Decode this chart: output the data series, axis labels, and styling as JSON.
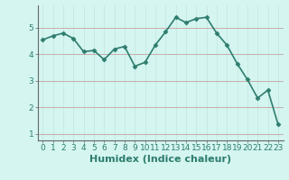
{
  "x": [
    0,
    1,
    2,
    3,
    4,
    5,
    6,
    7,
    8,
    9,
    10,
    11,
    12,
    13,
    14,
    15,
    16,
    17,
    18,
    19,
    20,
    21,
    22,
    23
  ],
  "y": [
    4.55,
    4.7,
    4.8,
    4.6,
    4.1,
    4.15,
    3.8,
    4.2,
    4.3,
    3.55,
    3.7,
    4.35,
    4.85,
    5.4,
    5.2,
    5.35,
    5.4,
    4.8,
    4.35,
    3.65,
    3.05,
    2.35,
    2.65,
    1.35
  ],
  "line_color": "#2e7d6e",
  "marker": "D",
  "marker_size": 2.5,
  "bg_color": "#d4f5f0",
  "grid_color_v": "#c8e8e0",
  "grid_color_h": "#c8a0a0",
  "xlabel": "Humidex (Indice chaleur)",
  "xlabel_fontsize": 8,
  "yticks": [
    1,
    2,
    3,
    4,
    5
  ],
  "xtick_labels": [
    "0",
    "1",
    "2",
    "3",
    "4",
    "5",
    "6",
    "7",
    "8",
    "9",
    "1011",
    "1213",
    "1415",
    "1617",
    "1819",
    "2021",
    "2223"
  ],
  "ylim": [
    0.75,
    5.85
  ],
  "xlim": [
    -0.5,
    23.5
  ],
  "tick_labelsize": 6.5,
  "linewidth": 1.2
}
